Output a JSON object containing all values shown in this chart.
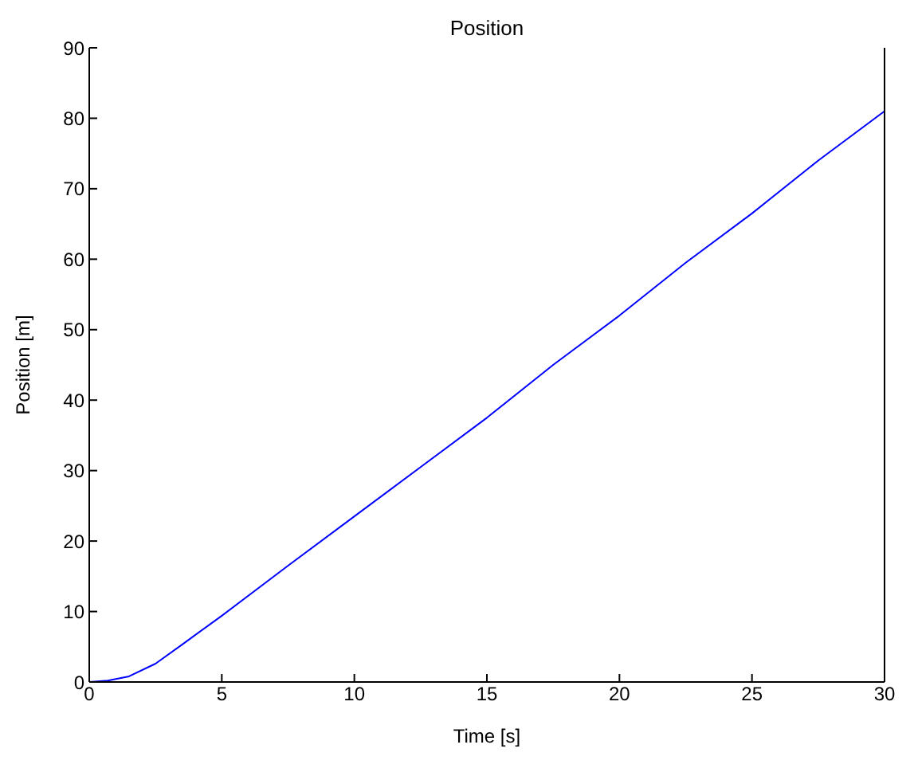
{
  "chart_data": {
    "type": "line",
    "title": "Position",
    "xlabel": "Time [s]",
    "ylabel": "Position [m]",
    "x": [
      0,
      0.7,
      1.5,
      2.5,
      3.5,
      5,
      7.5,
      10,
      12.5,
      15,
      17.5,
      20,
      22.5,
      25,
      27.5,
      30
    ],
    "series": [
      {
        "color": "#0000ff",
        "values": [
          0,
          0.2,
          0.8,
          2.6,
          5.3,
          9.4,
          16.5,
          23.5,
          30.5,
          37.5,
          45,
          52,
          59.5,
          66.5,
          74,
          81
        ]
      }
    ],
    "xlim": [
      0,
      30
    ],
    "xticks": [
      0,
      5,
      10,
      15,
      20,
      25,
      30
    ],
    "ylim": [
      0,
      90
    ],
    "yticks": [
      0,
      10,
      20,
      30,
      40,
      50,
      60,
      70,
      80,
      90
    ],
    "grid": false,
    "legend": false,
    "marker": "none",
    "line_style": "solid"
  }
}
